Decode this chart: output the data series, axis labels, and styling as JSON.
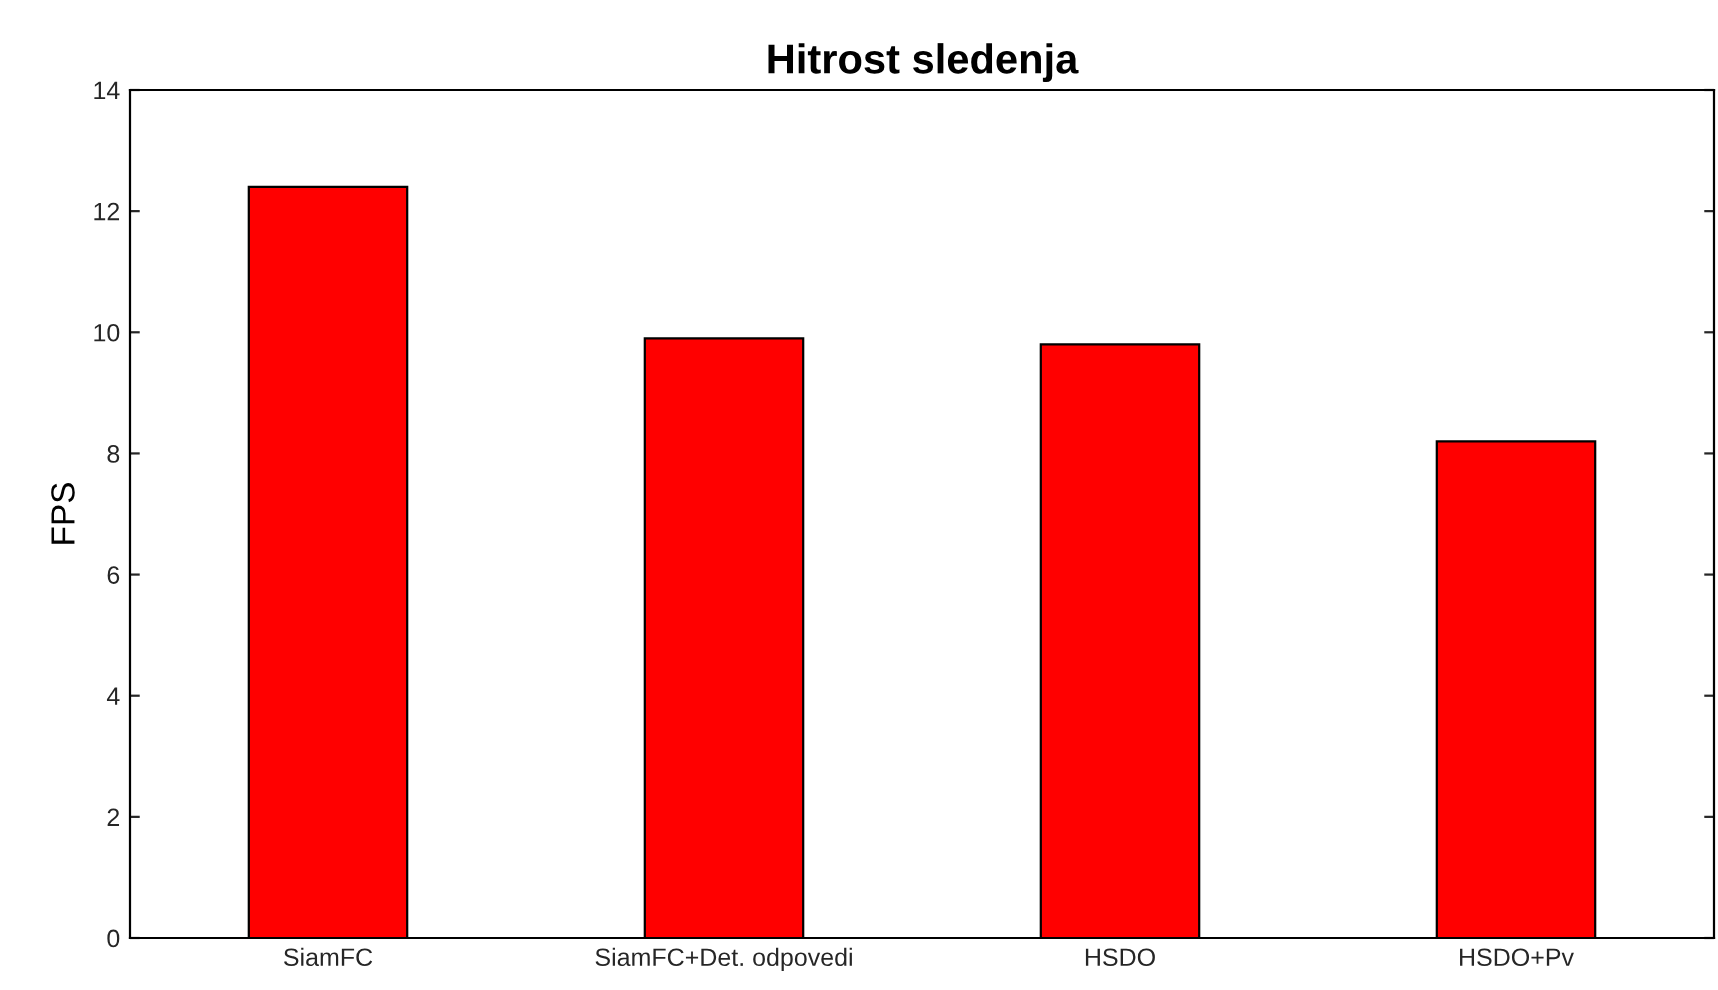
{
  "chart_data": {
    "type": "bar",
    "title": "Hitrost sledenja",
    "ylabel": "FPS",
    "categories": [
      "SiamFC",
      "SiamFC+Det. odpovedi",
      "HSDO",
      "HSDO+Pv"
    ],
    "values": [
      12.4,
      9.9,
      9.8,
      8.2
    ],
    "color": "#ff0000",
    "ylim": [
      0,
      14
    ],
    "yticks": [
      0,
      2,
      4,
      6,
      8,
      10,
      12,
      14
    ],
    "grid": false,
    "legend": false
  }
}
